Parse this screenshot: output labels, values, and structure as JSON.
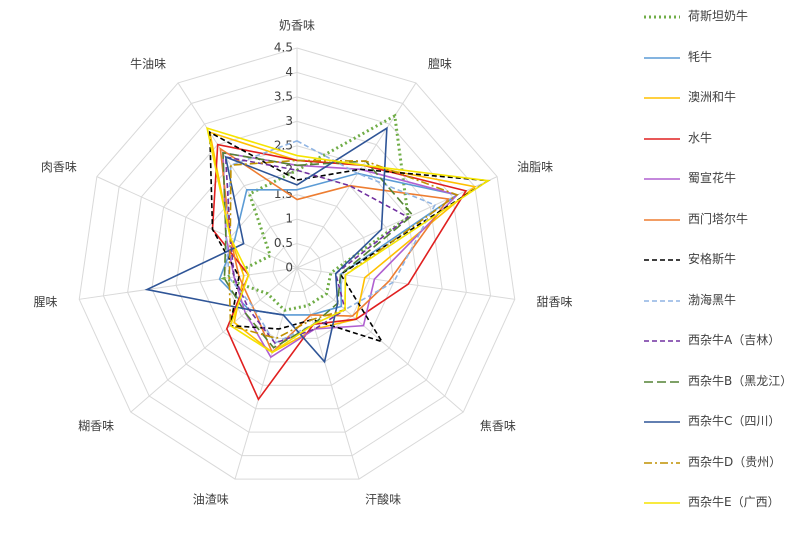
{
  "chart_data": {
    "type": "radar",
    "categories": [
      "奶香味",
      "膻味",
      "油脂味",
      "甜香味",
      "焦香味",
      "汗酸味",
      "油渣味",
      "糊香味",
      "腥味",
      "肉香味",
      "牛油味"
    ],
    "ylim": [
      0,
      4.5
    ],
    "yticks": [
      0,
      0.5,
      1,
      1.5,
      2,
      2.5,
      3,
      3.5,
      4,
      4.5
    ],
    "grid": true,
    "legend": "right",
    "series": [
      {
        "name": "荷斯坦奶牛",
        "color": "#70ad47",
        "style": "dotted",
        "values": [
          2.0,
          3.7,
          2.5,
          0.7,
          0.8,
          0.8,
          0.9,
          0.8,
          1.5,
          0.6,
          1.8
        ]
      },
      {
        "name": "牦牛",
        "color": "#5b9bd5",
        "style": "solid",
        "values": [
          1.6,
          2.3,
          3.6,
          0.9,
          1.2,
          1.0,
          1.0,
          1.3,
          1.6,
          1.4,
          1.9
        ]
      },
      {
        "name": "澳洲和牛",
        "color": "#ffc000",
        "style": "solid",
        "values": [
          2.2,
          2.5,
          4.0,
          1.4,
          1.6,
          1.3,
          1.8,
          1.7,
          1.1,
          1.5,
          3.3
        ]
      },
      {
        "name": "水牛",
        "color": "#e02020",
        "style": "solid",
        "values": [
          2.2,
          2.5,
          3.8,
          2.3,
          1.6,
          1.2,
          2.8,
          1.9,
          1.0,
          1.9,
          3.0
        ]
      },
      {
        "name": "蜀宣花牛",
        "color": "#b060d0",
        "style": "solid",
        "values": [
          2.1,
          2.4,
          3.6,
          1.6,
          1.8,
          1.3,
          1.9,
          1.4,
          1.3,
          1.6,
          2.8
        ]
      },
      {
        "name": "西门塔尔牛",
        "color": "#ed7d31",
        "style": "solid",
        "values": [
          1.4,
          2.0,
          3.4,
          1.9,
          1.5,
          1.0,
          1.8,
          1.2,
          1.2,
          1.5,
          2.9
        ]
      },
      {
        "name": "安格斯牛",
        "color": "#000000",
        "style": "dashed",
        "values": [
          1.8,
          2.4,
          4.3,
          0.9,
          2.3,
          1.1,
          1.3,
          1.8,
          1.2,
          1.9,
          3.3
        ]
      },
      {
        "name": "渤海黑牛",
        "color": "#8fb4e3",
        "style": "dashed",
        "values": [
          2.6,
          2.3,
          3.1,
          2.0,
          1.3,
          1.2,
          1.6,
          1.2,
          1.4,
          1.6,
          2.5
        ]
      },
      {
        "name": "西杂牛A（吉林）",
        "color": "#7030a0",
        "style": "dashed",
        "values": [
          2.0,
          2.0,
          2.5,
          0.8,
          1.3,
          1.3,
          1.6,
          1.3,
          1.3,
          1.5,
          2.7
        ]
      },
      {
        "name": "西杂牛B（黑龙江）",
        "color": "#548235",
        "style": "longdash",
        "values": [
          2.1,
          2.6,
          2.6,
          0.9,
          1.1,
          1.2,
          1.7,
          1.4,
          1.5,
          1.6,
          2.8
        ]
      },
      {
        "name": "西杂牛C（四川）",
        "color": "#2f5597",
        "style": "solid",
        "values": [
          1.7,
          3.4,
          1.9,
          0.8,
          1.1,
          2.0,
          1.0,
          1.3,
          3.1,
          1.2,
          2.7
        ]
      },
      {
        "name": "西杂牛D（贵州）",
        "color": "#bf9000",
        "style": "dashdot",
        "values": [
          2.2,
          2.6,
          3.6,
          1.0,
          1.3,
          1.1,
          1.5,
          1.8,
          1.4,
          1.5,
          2.5
        ]
      },
      {
        "name": "西杂牛E（广西）",
        "color": "#f5e400",
        "style": "solid",
        "values": [
          2.3,
          2.5,
          4.3,
          1.0,
          1.3,
          1.2,
          1.8,
          1.8,
          1.0,
          1.5,
          3.4
        ]
      }
    ]
  }
}
